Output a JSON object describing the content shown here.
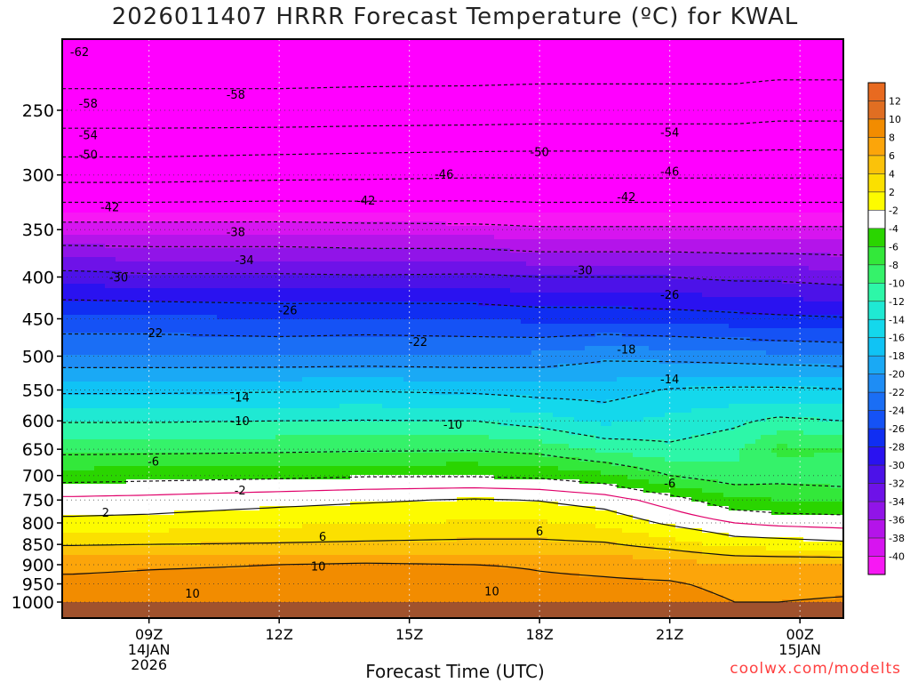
{
  "title": "2026011407 HRRR Forecast Temperature (ºC) for KWAL",
  "credit": "coolwx.com/modelts",
  "chart_data": {
    "type": "heatmap",
    "title": "2026011407 HRRR Forecast Temperature (ºC) for KWAL",
    "xlabel": "Forecast Time (UTC)",
    "ylabel": "",
    "x_hours_range": [
      7,
      25
    ],
    "y_pressure_range_hPa": [
      1000,
      200
    ],
    "y_scale": "log",
    "x_ticks": [
      {
        "hour": 9,
        "lines": [
          "09Z",
          "14JAN",
          "2026"
        ]
      },
      {
        "hour": 12,
        "lines": [
          "12Z"
        ]
      },
      {
        "hour": 15,
        "lines": [
          "15Z"
        ]
      },
      {
        "hour": 18,
        "lines": [
          "18Z"
        ]
      },
      {
        "hour": 21,
        "lines": [
          "21Z"
        ]
      },
      {
        "hour": 24,
        "lines": [
          "00Z",
          "15JAN"
        ]
      }
    ],
    "y_ticks": [
      250,
      300,
      350,
      400,
      450,
      500,
      550,
      600,
      650,
      700,
      750,
      800,
      850,
      900,
      950,
      1000
    ],
    "colorbar": {
      "levels": [
        "12",
        "10",
        "8",
        "6",
        "4",
        "2",
        "-2",
        "-4",
        "-6",
        "-8",
        "-10",
        "-12",
        "-14",
        "-16",
        "-18",
        "-20",
        "-22",
        "-24",
        "-26",
        "-28",
        "-30",
        "-32",
        "-34",
        "-36",
        "-38",
        "-40"
      ],
      "colors": [
        "#e06e22",
        "#f28c00",
        "#fca50a",
        "#fbc20a",
        "#fbe000",
        "#fdfb00",
        "#ffffff",
        "#2ad500",
        "#33e83a",
        "#35f26a",
        "#2df7a8",
        "#1fe9d3",
        "#14d8ec",
        "#10c3f5",
        "#1aa9f5",
        "#1e8df5",
        "#1a6ef5",
        "#1552f5",
        "#102ef2",
        "#2a12f0",
        "#4c12e8",
        "#6e12e8",
        "#9114e8",
        "#b414ea",
        "#d714f0",
        "#f718f4"
      ],
      "above_top_color": "#e86a20",
      "below_bottom_color": "#ff00ff"
    },
    "profiles": [
      {
        "hour": 7.2,
        "temps": {
          "1000": 11,
          "950": 10.6,
          "900": 9.4,
          "850": 5.8,
          "800": 2.6,
          "750": 0.5,
          "700": -3,
          "650": -6.8,
          "600": -10.2,
          "550": -14.5,
          "500": -19.8,
          "450": -23.5,
          "400": -29,
          "350": -36.5,
          "300": -47.5,
          "250": -56.5,
          "200": -62
        }
      },
      {
        "hour": 9.0,
        "temps": {
          "1000": 11,
          "950": 10.8,
          "900": 9.7,
          "850": 6,
          "800": 2.8,
          "750": 0.7,
          "700": -2.8,
          "650": -6.7,
          "600": -10.2,
          "550": -14.5,
          "500": -19.8,
          "450": -23.5,
          "400": -29.5,
          "350": -36.5,
          "300": -47.5,
          "250": -56.5,
          "200": -62
        }
      },
      {
        "hour": 12.0,
        "temps": {
          "1000": 11,
          "950": 11,
          "900": 10,
          "850": 6.2,
          "800": 3.5,
          "750": 1.3,
          "700": -2.5,
          "650": -6.5,
          "600": -10,
          "550": -14.3,
          "500": -19.8,
          "450": -24,
          "400": -29.5,
          "350": -36.5,
          "300": -47,
          "250": -56.5,
          "200": -62
        }
      },
      {
        "hour": 14.0,
        "temps": {
          "1000": 11.4,
          "950": 12,
          "900": 10.3,
          "850": 6.4,
          "800": 3.9,
          "750": 1.7,
          "700": -2.2,
          "650": -6.3,
          "600": -9.9,
          "550": -14.2,
          "500": -19.6,
          "450": -23.8,
          "400": -29.7,
          "350": -36.8,
          "300": -46.8,
          "250": -56.3,
          "200": -62
        }
      },
      {
        "hour": 16.5,
        "temps": {
          "1000": 11.8,
          "950": 11.2,
          "900": 10,
          "850": 6.6,
          "800": 4.2,
          "750": 2.2,
          "700": -2.2,
          "650": -6.2,
          "600": -10,
          "550": -14.5,
          "500": -19.8,
          "450": -24,
          "400": -29.5,
          "350": -37,
          "300": -46.5,
          "250": -56.2,
          "200": -62
        }
      },
      {
        "hour": 18.0,
        "temps": {
          "1000": 10.2,
          "950": 10.4,
          "900": 9.8,
          "850": 6.6,
          "800": 4.2,
          "750": 1.9,
          "700": -2.5,
          "650": -6.8,
          "600": -11,
          "550": -15,
          "500": -19.5,
          "450": -24.5,
          "400": -30,
          "350": -37.5,
          "300": -46.5,
          "250": -56,
          "200": -62
        }
      },
      {
        "hour": 19.5,
        "temps": {
          "1000": 10.5,
          "950": 10.3,
          "900": 9.5,
          "850": 6.3,
          "800": 3.5,
          "750": 1,
          "700": -3.5,
          "650": -8.5,
          "600": -12.5,
          "550": -15,
          "500": -18.5,
          "450": -24.5,
          "400": -30,
          "350": -37.5,
          "300": -46.5,
          "250": -56,
          "200": -62
        }
      },
      {
        "hour": 21.0,
        "temps": {
          "1000": 10.8,
          "950": 10.2,
          "900": 9,
          "850": 5,
          "800": 1.6,
          "750": -1,
          "700": -6,
          "650": -9.5,
          "600": -11.5,
          "550": -13.8,
          "500": -18.8,
          "450": -24.8,
          "400": -30,
          "350": -37.5,
          "300": -46.5,
          "250": -56,
          "200": -62
        }
      },
      {
        "hour": 22.5,
        "temps": {
          "1000": 10,
          "950": 9.5,
          "900": 8.2,
          "850": 3.2,
          "800": 0,
          "750": -3.5,
          "700": -7.5,
          "650": -8.5,
          "600": -10.5,
          "550": -13.5,
          "500": -19.2,
          "450": -25.2,
          "400": -30.5,
          "350": -37.5,
          "300": -46.5,
          "250": -56,
          "200": -62
        }
      },
      {
        "hour": 23.5,
        "temps": {
          "1000": 10,
          "950": 9.2,
          "900": 8,
          "850": 3,
          "800": -0.5,
          "750": -4,
          "700": -7,
          "650": -5.5,
          "600": -9.5,
          "550": -13.5,
          "500": -19.5,
          "450": -25.5,
          "400": -30.5,
          "350": -37.5,
          "300": -46.5,
          "250": -55.5,
          "200": -62
        }
      },
      {
        "hour": 25.0,
        "temps": {
          "1000": 10.3,
          "950": 9.3,
          "900": 8,
          "850": 2.5,
          "800": -0.8,
          "750": -4.2,
          "700": -7.5,
          "650": -5.8,
          "600": -10,
          "550": -13.8,
          "500": -19.8,
          "450": -25.8,
          "400": -31,
          "350": -37.5,
          "300": -46.5,
          "250": -55.5,
          "200": -62
        }
      }
    ],
    "contour_labels": [
      {
        "text": "-62",
        "hour": 7.4,
        "hPa": 212
      },
      {
        "text": "-58",
        "hour": 7.6,
        "hPa": 245
      },
      {
        "text": "-58",
        "hour": 11.0,
        "hPa": 239
      },
      {
        "text": "-54",
        "hour": 7.6,
        "hPa": 268
      },
      {
        "text": "-54",
        "hour": 21.0,
        "hPa": 266
      },
      {
        "text": "-50",
        "hour": 7.6,
        "hPa": 283
      },
      {
        "text": "-50",
        "hour": 18.0,
        "hPa": 281
      },
      {
        "text": "-46",
        "hour": 15.8,
        "hPa": 299
      },
      {
        "text": "-46",
        "hour": 21.0,
        "hPa": 297
      },
      {
        "text": "-42",
        "hour": 8.1,
        "hPa": 328
      },
      {
        "text": "-42",
        "hour": 14.0,
        "hPa": 322
      },
      {
        "text": "-42",
        "hour": 20.0,
        "hPa": 319
      },
      {
        "text": "-38",
        "hour": 11.0,
        "hPa": 352
      },
      {
        "text": "-34",
        "hour": 11.2,
        "hPa": 381
      },
      {
        "text": "-30",
        "hour": 8.3,
        "hPa": 400
      },
      {
        "text": "-30",
        "hour": 19.0,
        "hPa": 392
      },
      {
        "text": "-26",
        "hour": 12.2,
        "hPa": 439
      },
      {
        "text": "-26",
        "hour": 21.0,
        "hPa": 420
      },
      {
        "text": "-22",
        "hour": 9.1,
        "hPa": 468
      },
      {
        "text": "-22",
        "hour": 15.2,
        "hPa": 480
      },
      {
        "text": "-18",
        "hour": 20.0,
        "hPa": 490
      },
      {
        "text": "-14",
        "hour": 11.1,
        "hPa": 561
      },
      {
        "text": "-14",
        "hour": 21.0,
        "hPa": 533
      },
      {
        "text": "-10",
        "hour": 11.1,
        "hPa": 600
      },
      {
        "text": "-10",
        "hour": 16.0,
        "hPa": 606
      },
      {
        "text": "-6",
        "hour": 9.1,
        "hPa": 672
      },
      {
        "text": "-6",
        "hour": 21.0,
        "hPa": 715
      },
      {
        "text": "-2",
        "hour": 11.1,
        "hPa": 729
      },
      {
        "text": "2",
        "hour": 8.0,
        "hPa": 776
      },
      {
        "text": "6",
        "hour": 13.0,
        "hPa": 831
      },
      {
        "text": "6",
        "hour": 18.0,
        "hPa": 818
      },
      {
        "text": "10",
        "hour": 12.9,
        "hPa": 903
      },
      {
        "text": "10",
        "hour": 10.0,
        "hPa": 975
      },
      {
        "text": "10",
        "hour": 16.9,
        "hPa": 969
      }
    ]
  }
}
